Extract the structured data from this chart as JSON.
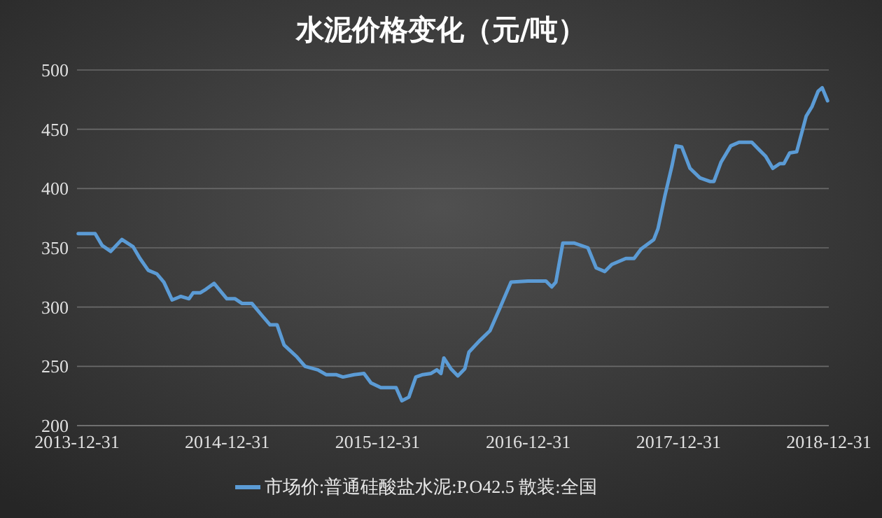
{
  "chart_data": {
    "type": "line",
    "title": "水泥价格变化（元/吨）",
    "x": [
      "2014-01-03",
      "2014-02-13",
      "2014-03-02",
      "2014-03-23",
      "2014-04-19",
      "2014-05-16",
      "2014-06-02",
      "2014-06-22",
      "2014-07-13",
      "2014-07-30",
      "2014-08-19",
      "2014-09-09",
      "2014-09-29",
      "2014-10-09",
      "2014-10-26",
      "2014-11-09",
      "2014-11-29",
      "2014-12-30",
      "2015-01-19",
      "2015-02-05",
      "2015-03-01",
      "2015-03-25",
      "2015-04-14",
      "2015-05-01",
      "2015-05-18",
      "2015-06-18",
      "2015-07-08",
      "2015-08-08",
      "2015-08-28",
      "2015-09-21",
      "2015-10-08",
      "2015-11-04",
      "2015-11-28",
      "2015-12-15",
      "2016-01-08",
      "2016-02-14",
      "2016-02-28",
      "2016-03-16",
      "2016-04-02",
      "2016-04-19",
      "2016-05-09",
      "2016-05-23",
      "2016-06-02",
      "2016-06-09",
      "2016-06-26",
      "2016-07-13",
      "2016-07-30",
      "2016-08-09",
      "2016-09-05",
      "2016-09-29",
      "2016-10-23",
      "2016-11-19",
      "2016-12-30",
      "2017-02-12",
      "2017-02-26",
      "2017-03-08",
      "2017-03-25",
      "2017-04-21",
      "2017-05-25",
      "2017-06-14",
      "2017-07-05",
      "2017-07-22",
      "2017-08-25",
      "2017-09-14",
      "2017-10-01",
      "2017-11-01",
      "2017-11-11",
      "2017-11-28",
      "2017-12-15",
      "2017-12-25",
      "2018-01-08",
      "2018-01-28",
      "2018-02-21",
      "2018-03-17",
      "2018-03-27",
      "2018-04-13",
      "2018-05-07",
      "2018-05-27",
      "2018-06-27",
      "2018-07-14",
      "2018-07-31",
      "2018-08-17",
      "2018-09-03",
      "2018-09-13",
      "2018-09-27",
      "2018-10-14",
      "2018-11-06",
      "2018-11-20",
      "2018-12-05",
      "2018-12-15",
      "2018-12-28"
    ],
    "series": [
      {
        "name": "市场价:普通硅酸盐水泥:P.O42.5 散装:全国",
        "color": "#5b9bd5",
        "values": [
          362,
          362,
          352,
          347,
          357,
          351,
          341,
          331,
          328,
          321,
          306,
          309,
          307,
          312,
          312,
          315,
          320,
          307,
          307,
          303,
          303,
          293,
          285,
          285,
          268,
          258,
          250,
          247,
          243,
          243,
          241,
          243,
          244,
          236,
          232,
          232,
          221,
          224,
          241,
          243,
          244,
          247,
          244,
          257,
          248,
          242,
          248,
          262,
          272,
          280,
          299,
          321,
          322,
          322,
          317,
          321,
          354,
          354,
          350,
          333,
          330,
          336,
          341,
          341,
          349,
          357,
          366,
          394,
          419,
          436,
          435,
          417,
          409,
          406,
          406,
          422,
          436,
          439,
          439,
          433,
          427,
          417,
          421,
          421,
          430,
          431,
          461,
          469,
          482,
          485,
          474
        ]
      }
    ],
    "xlim": [
      "2013-12-31",
      "2018-12-31"
    ],
    "xticks": [
      "2013-12-31",
      "2014-12-31",
      "2015-12-31",
      "2016-12-31",
      "2017-12-31",
      "2018-12-31"
    ],
    "ylim": [
      200,
      500
    ],
    "yticks": [
      200,
      250,
      300,
      350,
      400,
      450,
      500
    ],
    "grid": "y",
    "legend": "bottom",
    "marker": "none",
    "line_style": "solid"
  }
}
